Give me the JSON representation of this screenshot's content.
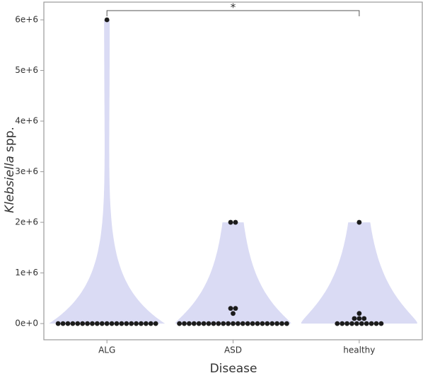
{
  "chart_data": {
    "type": "violin",
    "xlabel": "Disease",
    "ylabel": {
      "italic": "Klebsiella",
      "plain": "spp."
    },
    "categories": [
      "ALG",
      "ASD",
      "healthy"
    ],
    "values": [
      [
        0,
        0,
        0,
        0,
        0,
        0,
        0,
        0,
        0,
        0,
        0,
        0,
        0,
        0,
        0,
        0,
        0,
        0,
        0,
        0,
        0,
        6000000
      ],
      [
        0,
        0,
        0,
        0,
        0,
        0,
        0,
        0,
        0,
        0,
        0,
        0,
        0,
        0,
        0,
        0,
        0,
        0,
        0,
        0,
        0,
        0,
        0,
        200000,
        300000,
        300000,
        2000000,
        2000000
      ],
      [
        0,
        0,
        0,
        0,
        0,
        0,
        0,
        0,
        0,
        0,
        100000,
        100000,
        100000,
        200000,
        2000000
      ]
    ],
    "violin_color": "#dadbf4",
    "point_color": "#1c1c1c",
    "ylim": [
      -320000,
      6350000
    ],
    "yticks": [
      {
        "value": 0,
        "label": "0e+0"
      },
      {
        "value": 1000000,
        "label": "1e+6"
      },
      {
        "value": 2000000,
        "label": "2e+6"
      },
      {
        "value": 3000000,
        "label": "3e+6"
      },
      {
        "value": 4000000,
        "label": "4e+6"
      },
      {
        "value": 5000000,
        "label": "5e+6"
      },
      {
        "value": 6000000,
        "label": "6e+6"
      }
    ],
    "significance_label": "*"
  }
}
